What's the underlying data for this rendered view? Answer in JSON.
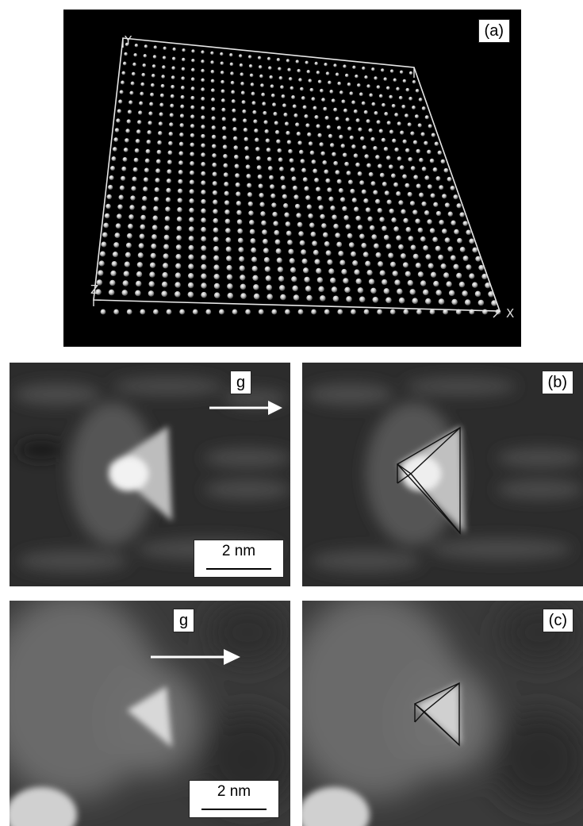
{
  "panels": {
    "a": {
      "label": "(a)",
      "axes": {
        "x": "X",
        "y": "Y",
        "z": "Z"
      }
    },
    "b": {
      "label": "(b)",
      "g_label": "g",
      "scale_label": "2 nm"
    },
    "c": {
      "label": "(c)",
      "g_label": "g",
      "scale_label": "2 nm"
    }
  }
}
